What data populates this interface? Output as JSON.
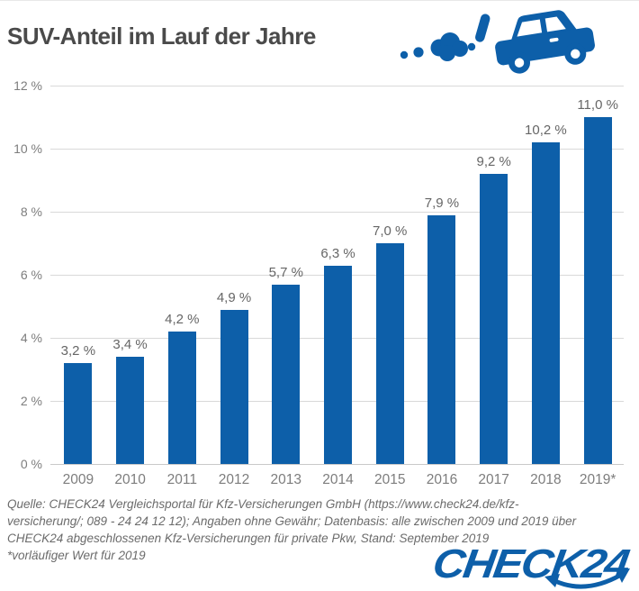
{
  "title": "SUV-Anteil im Lauf der Jahre",
  "icons": {
    "header_icon": "suv-car-exhaust-icon",
    "logo_arrow_icon": "curved-double-arrow-icon"
  },
  "colors": {
    "brand_blue": "#0d5fa9",
    "title_gray": "#4a4a4a",
    "axis_label_gray": "#7d7d7d",
    "value_label_gray": "#666666",
    "gridline_gray": "#d9d9d9",
    "footer_gray": "#6b6b6b"
  },
  "chart_data": {
    "type": "bar",
    "title": "SUV-Anteil im Lauf der Jahre",
    "categories": [
      "2009",
      "2010",
      "2011",
      "2012",
      "2013",
      "2014",
      "2015",
      "2016",
      "2017",
      "2018",
      "2019*"
    ],
    "values": [
      3.2,
      3.4,
      4.2,
      4.9,
      5.7,
      6.3,
      7.0,
      7.9,
      9.2,
      10.2,
      11.0
    ],
    "value_labels": [
      "3,2 %",
      "3,4 %",
      "4,2 %",
      "4,9 %",
      "5,7 %",
      "6,3 %",
      "7,0 %",
      "7,9 %",
      "9,2 %",
      "10,2 %",
      "11,0 %"
    ],
    "y_ticks": [
      "0 %",
      "2 %",
      "4 %",
      "6 %",
      "8 %",
      "10 %",
      "12 %"
    ],
    "y_tick_values": [
      0,
      2,
      4,
      6,
      8,
      10,
      12
    ],
    "ylim": [
      0,
      12
    ],
    "xlabel": "",
    "ylabel": "",
    "grid": true,
    "legend": false,
    "bar_color": "#0d5fa9"
  },
  "footer": {
    "lines": [
      "Quelle: CHECK24 Vergleichsportal  für Kfz-Versicherungen  GmbH (https://www.check24.de/kfz-",
      "versicherung/;  089 - 24 24 12 12); Angaben ohne Gewähr; Datenbasis:  alle zwischen 2009 und 2019 über",
      "CHECK24 abgeschlossenen  Kfz-Versicherungen  für private Pkw, Stand: September 2019",
      "*vorläufiger  Wert für 2019"
    ]
  },
  "brand": {
    "logo_text": "CHECK24"
  }
}
